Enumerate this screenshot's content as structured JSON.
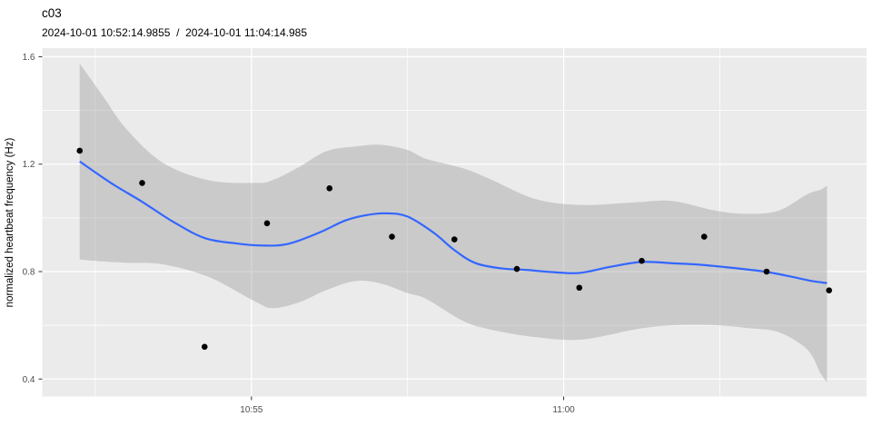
{
  "chart_data": {
    "type": "scatter",
    "title": "c03",
    "subtitle": "2024-10-01 10:52:14.9855  /  2024-10-01 11:04:14.985",
    "xlabel": "",
    "ylabel": "normalized heartbeat frequency (Hz)",
    "grid": "on",
    "legend": "none",
    "x_axis": {
      "unit": "time of day (seconds)",
      "lim": [
        39099,
        39891
      ],
      "major_ticks": [
        {
          "t": 39300,
          "label": "10:55"
        },
        {
          "t": 39600,
          "label": "11:00"
        }
      ],
      "minor_ticks": [
        39150,
        39450,
        39750
      ]
    },
    "y_axis": {
      "lim": [
        0.335,
        1.632
      ],
      "major_ticks": [
        {
          "v": 0.4,
          "label": "0.4"
        },
        {
          "v": 0.8,
          "label": "0.8"
        },
        {
          "v": 1.2,
          "label": "1.2"
        },
        {
          "v": 1.6,
          "label": "1.6"
        }
      ],
      "minor_ticks": [
        0.6,
        1.0,
        1.4
      ]
    },
    "points": {
      "times": [
        "10:52:15",
        "10:53:15",
        "10:54:15",
        "10:55:15",
        "10:56:15",
        "10:57:15",
        "10:58:15",
        "10:59:15",
        "11:00:15",
        "11:01:15",
        "11:02:15",
        "11:03:15",
        "11:04:15"
      ],
      "t": [
        39135,
        39195,
        39255,
        39315,
        39375,
        39435,
        39495,
        39555,
        39615,
        39675,
        39735,
        39795,
        39855
      ],
      "values": [
        1.25,
        1.13,
        0.52,
        0.98,
        1.11,
        0.93,
        0.92,
        0.81,
        0.74,
        0.84,
        0.93,
        0.8,
        0.73
      ]
    },
    "smooth_line": {
      "t": [
        39135,
        39165,
        39195,
        39225,
        39255,
        39285,
        39310,
        39335,
        39365,
        39390,
        39410,
        39430,
        39450,
        39475,
        39495,
        39515,
        39540,
        39565,
        39590,
        39615,
        39645,
        39675,
        39705,
        39733,
        39762,
        39793,
        39820,
        39837,
        39853
      ],
      "values": [
        1.21,
        1.13,
        1.06,
        0.985,
        0.925,
        0.905,
        0.897,
        0.903,
        0.945,
        0.99,
        1.01,
        1.017,
        1.005,
        0.945,
        0.88,
        0.832,
        0.812,
        0.806,
        0.798,
        0.795,
        0.818,
        0.836,
        0.831,
        0.825,
        0.814,
        0.8,
        0.78,
        0.766,
        0.757
      ]
    },
    "confidence_band": {
      "t": [
        39135,
        39157,
        39180,
        39215,
        39259,
        39303,
        39320,
        39346,
        39372,
        39400,
        39425,
        39450,
        39468,
        39503,
        39529,
        39573,
        39617,
        39669,
        39704,
        39747,
        39776,
        39806,
        39834,
        39847,
        39853
      ],
      "upper": [
        1.575,
        1.455,
        1.33,
        1.205,
        1.14,
        1.13,
        1.14,
        1.19,
        1.248,
        1.266,
        1.272,
        1.253,
        1.22,
        1.185,
        1.145,
        1.07,
        1.048,
        1.058,
        1.063,
        1.026,
        1.015,
        1.026,
        1.088,
        1.105,
        1.12
      ],
      "lower": [
        0.845,
        0.838,
        0.833,
        0.827,
        0.78,
        0.69,
        0.664,
        0.686,
        0.731,
        0.765,
        0.755,
        0.72,
        0.698,
        0.617,
        0.585,
        0.556,
        0.547,
        0.585,
        0.6,
        0.6,
        0.59,
        0.575,
        0.51,
        0.42,
        0.387
      ]
    },
    "colors": {
      "background": "#FFFFFF",
      "panel": "#EBEBEB",
      "grid": "#FFFFFF",
      "ribbon": "#999999",
      "ribbon_opacity": 0.4,
      "line": "#3366FF",
      "point": "#000000",
      "tick_mark": "#333333",
      "tick_text": "#4D4D4D",
      "text": "#000000"
    }
  }
}
